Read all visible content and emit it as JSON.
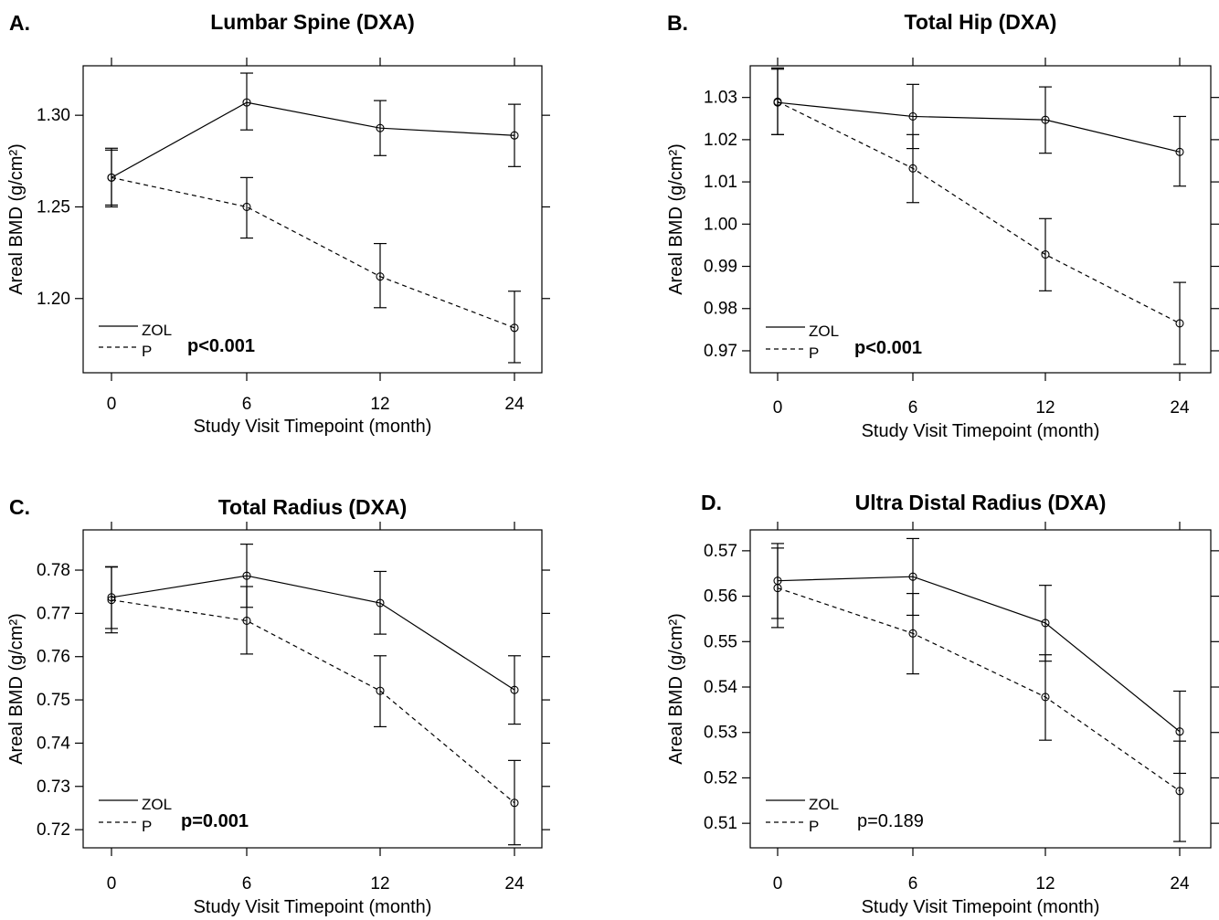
{
  "chart_data": [
    {
      "type": "line",
      "panel": "A.",
      "title": "Lumbar Spine (DXA)",
      "xlabel": "Study Visit Timepoint (month)",
      "ylabel": "Areal BMD (g/cm²)",
      "x_categories": [
        "0",
        "6",
        "12",
        "24"
      ],
      "y_ticks": [
        "1.20",
        "1.25",
        "1.30"
      ],
      "ylim": [
        1.1595,
        1.327
      ],
      "p_value": "p<0.001",
      "p_bold": true,
      "series": [
        {
          "name": "ZOL",
          "style": "solid",
          "values": [
            1.266,
            1.307,
            1.293,
            1.289
          ],
          "err_low": [
            1.25,
            1.292,
            1.278,
            1.272
          ],
          "err_high": [
            1.282,
            1.323,
            1.308,
            1.306
          ]
        },
        {
          "name": "P",
          "style": "dashed",
          "values": [
            1.266,
            1.25,
            1.212,
            1.184
          ],
          "err_low": [
            1.251,
            1.233,
            1.195,
            1.165
          ],
          "err_high": [
            1.281,
            1.266,
            1.23,
            1.204
          ]
        }
      ]
    },
    {
      "type": "line",
      "panel": "B.",
      "title": "Total Hip (DXA)",
      "xlabel": "Study Visit Timepoint (month)",
      "ylabel": "Areal BMD (g/cm²)",
      "x_categories": [
        "0",
        "6",
        "12",
        "24"
      ],
      "y_ticks": [
        "0.97",
        "0.98",
        "0.99",
        "1.00",
        "1.01",
        "1.02",
        "1.03"
      ],
      "ylim": [
        0.9648,
        1.0375
      ],
      "p_value": "p<0.001",
      "p_bold": true,
      "series": [
        {
          "name": "ZOL",
          "style": "solid",
          "values": [
            1.0288,
            1.0255,
            1.0247,
            1.0171
          ],
          "err_low": [
            1.0212,
            1.0179,
            1.0168,
            1.009
          ],
          "err_high": [
            1.0367,
            1.0331,
            1.0325,
            1.0255
          ]
        },
        {
          "name": "P",
          "style": "dashed",
          "values": [
            1.029,
            1.0132,
            0.9928,
            0.9765
          ],
          "err_low": [
            1.0212,
            1.0051,
            0.9842,
            0.9668
          ],
          "err_high": [
            1.037,
            1.0212,
            1.0013,
            0.9862
          ]
        }
      ]
    },
    {
      "type": "line",
      "panel": "C.",
      "title": "Total Radius (DXA)",
      "xlabel": "Study Visit Timepoint (month)",
      "ylabel": "Areal BMD (g/cm²)",
      "x_categories": [
        "0",
        "6",
        "12",
        "24"
      ],
      "y_ticks": [
        "0.72",
        "0.73",
        "0.74",
        "0.75",
        "0.76",
        "0.77",
        "0.78"
      ],
      "ylim": [
        0.7158,
        0.7893
      ],
      "p_value": "p=0.001",
      "p_bold": true,
      "series": [
        {
          "name": "ZOL",
          "style": "solid",
          "values": [
            0.7737,
            0.7787,
            0.7724,
            0.7523
          ],
          "err_low": [
            0.7665,
            0.7714,
            0.7652,
            0.7444
          ],
          "err_high": [
            0.7807,
            0.786,
            0.7797,
            0.7602
          ]
        },
        {
          "name": "P",
          "style": "dashed",
          "values": [
            0.7731,
            0.7683,
            0.7521,
            0.7262
          ],
          "err_low": [
            0.7655,
            0.7606,
            0.7438,
            0.7165
          ],
          "err_high": [
            0.7808,
            0.7762,
            0.7602,
            0.736
          ]
        }
      ]
    },
    {
      "type": "line",
      "panel": "D.",
      "title": "Ultra Distal Radius (DXA)",
      "xlabel": "Study Visit Timepoint (month)",
      "ylabel": "Areal BMD (g/cm²)",
      "x_categories": [
        "0",
        "6",
        "12",
        "24"
      ],
      "y_ticks": [
        "0.51",
        "0.52",
        "0.53",
        "0.54",
        "0.55",
        "0.56",
        "0.57"
      ],
      "ylim": [
        0.5046,
        0.5746
      ],
      "p_value": "p=0.189",
      "p_bold": false,
      "series": [
        {
          "name": "ZOL",
          "style": "solid",
          "values": [
            0.5634,
            0.5643,
            0.5541,
            0.5302
          ],
          "err_low": [
            0.5551,
            0.5558,
            0.5457,
            0.521
          ],
          "err_high": [
            0.5716,
            0.5727,
            0.5624,
            0.5391
          ]
        },
        {
          "name": "P",
          "style": "dashed",
          "values": [
            0.5618,
            0.5518,
            0.5378,
            0.5171
          ],
          "err_low": [
            0.5531,
            0.5429,
            0.5283,
            0.506
          ],
          "err_high": [
            0.5706,
            0.5606,
            0.5471,
            0.5281
          ]
        }
      ]
    }
  ]
}
